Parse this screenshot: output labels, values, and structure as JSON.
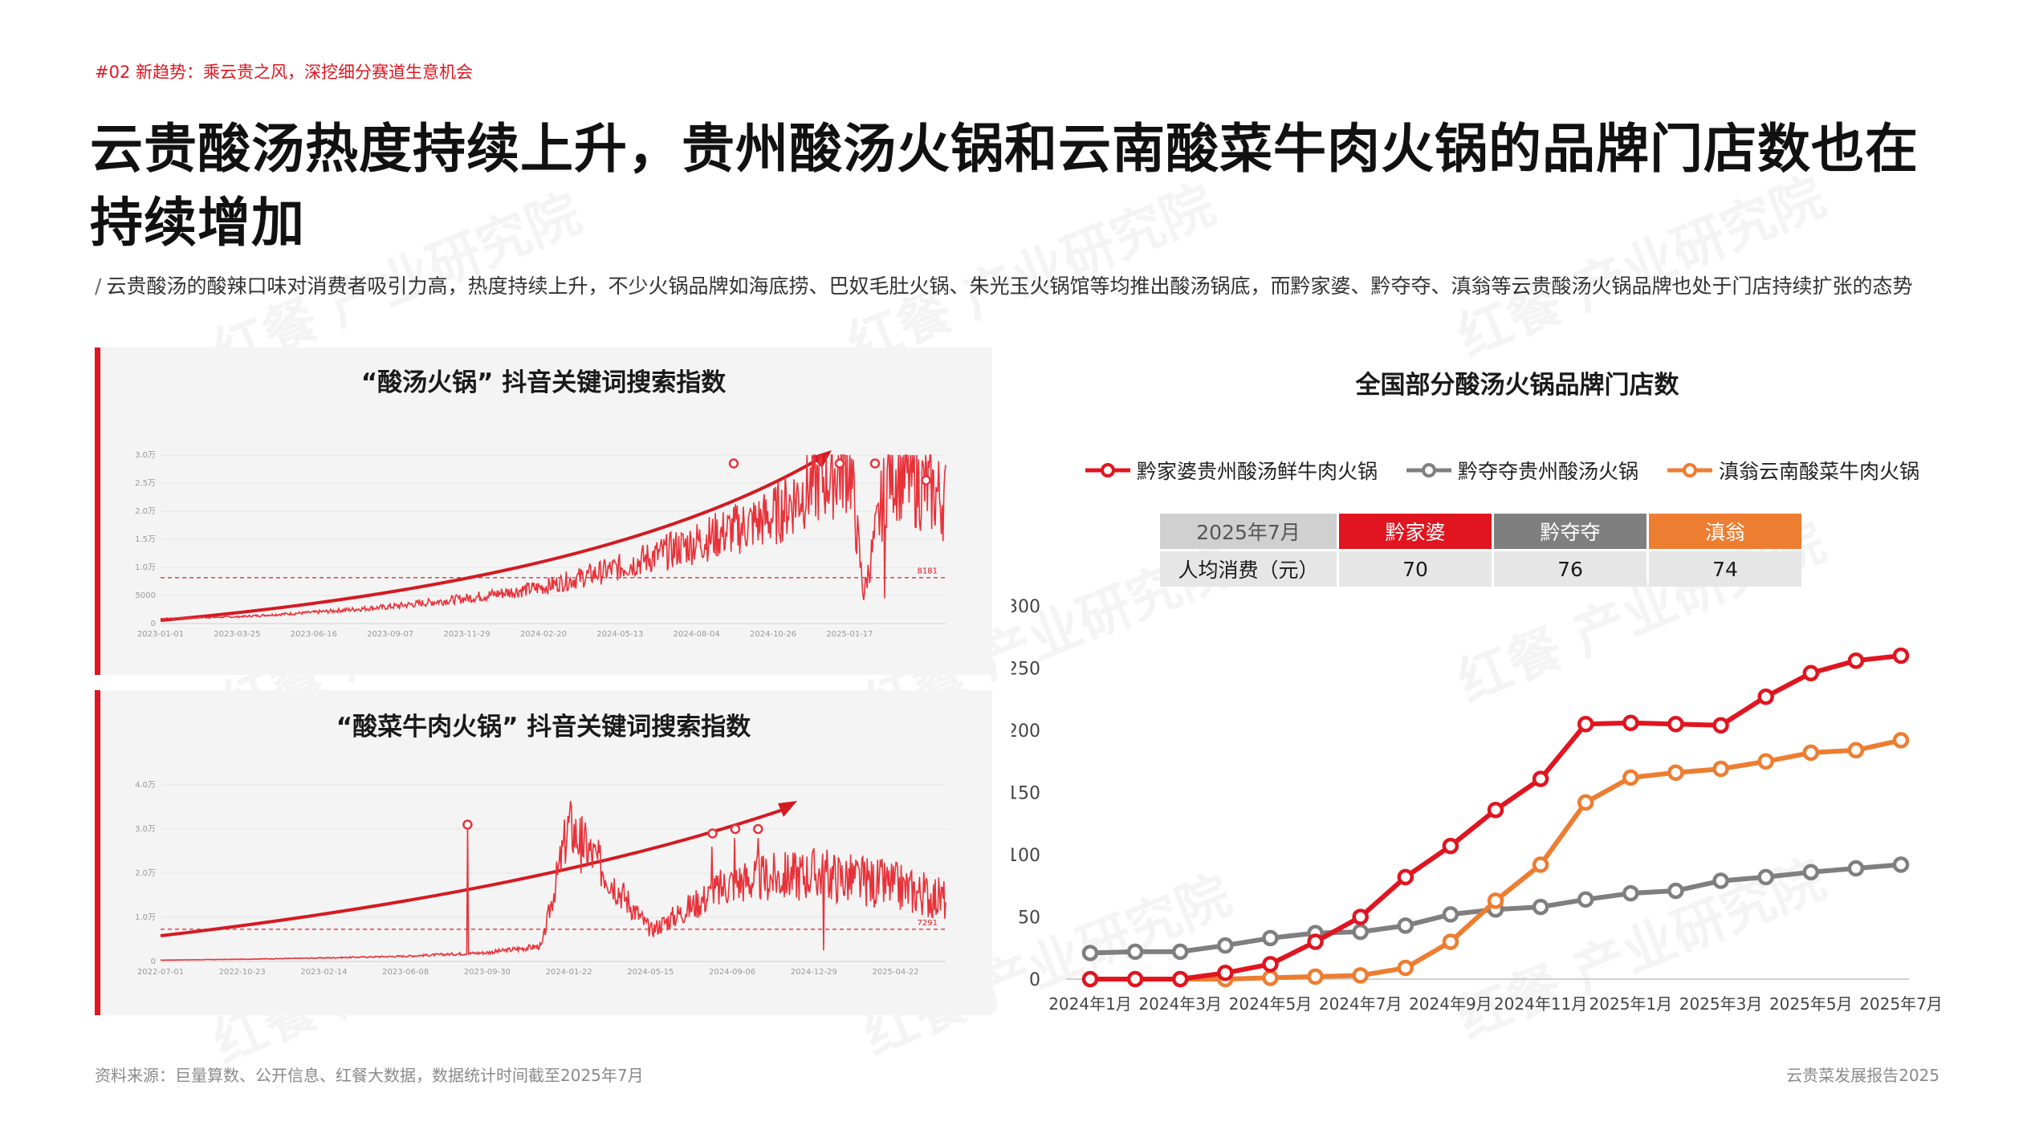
{
  "header": {
    "section_tag": "#02 新趋势：乘云贵之风，深挖细分赛道生意机会",
    "title": "云贵酸汤热度持续上升，贵州酸汤火锅和云南酸菜牛肉火锅的品牌门店数也在持续增加",
    "subtitle": "云贵酸汤的酸辣口味对消费者吸引力高，热度持续上升，不少火锅品牌如海底捞、巴奴毛肚火锅、朱光玉火锅馆等均推出酸汤锅底，而黔家婆、黔夺夺、滇翁等云贵酸汤火锅品牌也处于门店持续扩张的态势"
  },
  "watermark": "红餐 产业研究院",
  "chart_data": [
    {
      "type": "line",
      "title": "“酸汤火锅” 抖音关键词搜索指数",
      "x_ticks": [
        "2023-01-01",
        "2023-03-25",
        "2023-06-16",
        "2023-09-07",
        "2023-11-29",
        "2024-02-20",
        "2024-05-13",
        "2024-08-04",
        "2024-10-26",
        "2025-01-17"
      ],
      "y_ticks": [
        "0",
        "5000",
        "1.0万",
        "1.5万",
        "2.0万",
        "2.5万",
        "3.0万"
      ],
      "ylim": [
        0,
        30000
      ],
      "reference_line": {
        "value": 8181,
        "label": "8181"
      },
      "series": [
        {
          "x": [
            "2023-01-01",
            "2023-03-25",
            "2023-06-16",
            "2023-09-07",
            "2023-11-29",
            "2024-02-20",
            "2024-05-13",
            "2024-08-04",
            "2024-10-26",
            "2024-12-01",
            "2025-01-17",
            "2025-02-01",
            "2025-03-01",
            "2025-05-01"
          ],
          "values": [
            900,
            1200,
            2000,
            3000,
            4500,
            6500,
            10000,
            14500,
            19000,
            24000,
            28500,
            5000,
            28000,
            22000
          ]
        }
      ],
      "trend_arrow": true
    },
    {
      "type": "line",
      "title": "“酸菜牛肉火锅” 抖音关键词搜索指数",
      "x_ticks": [
        "2022-07-01",
        "2022-10-23",
        "2023-02-14",
        "2023-06-08",
        "2023-09-30",
        "2024-01-22",
        "2024-05-15",
        "2024-09-06",
        "2024-12-29",
        "2025-04-22"
      ],
      "y_ticks": [
        "0",
        "1.0万",
        "2.0万",
        "3.0万",
        "4.0万"
      ],
      "ylim": [
        0,
        40000
      ],
      "reference_line": {
        "value": 7291,
        "label": "7291"
      },
      "series": [
        {
          "x": [
            "2022-07-01",
            "2022-10-23",
            "2023-02-14",
            "2023-06-08",
            "2023-09-30",
            "2023-12-15",
            "2024-01-22",
            "2024-05-15",
            "2024-09-06",
            "2024-12-29",
            "2025-04-22",
            "2025-07-01"
          ],
          "values": [
            300,
            500,
            800,
            1200,
            2000,
            3500,
            31000,
            7000,
            18000,
            20000,
            17000,
            14000
          ]
        }
      ],
      "trend_arrow": true
    },
    {
      "type": "line",
      "title": "全国部分酸汤火锅品牌门店数",
      "x": [
        "2024年1月",
        "2024年2月",
        "2024年3月",
        "2024年4月",
        "2024年5月",
        "2024年6月",
        "2024年7月",
        "2024年8月",
        "2024年9月",
        "2024年10月",
        "2024年11月",
        "2024年12月",
        "2025年1月",
        "2025年2月",
        "2025年3月",
        "2025年4月",
        "2025年5月",
        "2025年6月",
        "2025年7月"
      ],
      "x_tick_labels": [
        "2024年1月",
        "2024年3月",
        "2024年5月",
        "2024年7月",
        "2024年9月",
        "2024年11月",
        "2025年1月",
        "2025年3月",
        "2025年5月",
        "2025年7月"
      ],
      "y_ticks": [
        0,
        50,
        100,
        150,
        200,
        250,
        300
      ],
      "ylim": [
        0,
        300
      ],
      "series": [
        {
          "name": "黔家婆贵州酸汤鲜牛肉火锅",
          "color": "#e0151f",
          "values": [
            0,
            0,
            0,
            5,
            12,
            30,
            50,
            82,
            107,
            136,
            161,
            205,
            206,
            205,
            204,
            227,
            246,
            256,
            260
          ]
        },
        {
          "name": "黔夺夺贵州酸汤火锅",
          "color": "#7f7f7f",
          "values": [
            21,
            22,
            22,
            27,
            33,
            37,
            38,
            43,
            52,
            56,
            58,
            64,
            69,
            71,
            79,
            82,
            86,
            89,
            92
          ]
        },
        {
          "name": "滇翁云南酸菜牛肉火锅",
          "color": "#ed7d31",
          "values": [
            null,
            null,
            0,
            0,
            1,
            2,
            3,
            9,
            30,
            63,
            92,
            142,
            162,
            166,
            169,
            175,
            182,
            184,
            192
          ]
        }
      ]
    }
  ],
  "price_table": {
    "header": [
      "2025年7月",
      "黔家婆",
      "黔夺夺",
      "滇翁"
    ],
    "row_label": "人均消费（元）",
    "values": [
      "70",
      "76",
      "74"
    ],
    "colors": {
      "header_label_bg": "#d0d0d0",
      "qianjiapo": "#e0151f",
      "qianduoduo": "#7f7f7f",
      "dianweng": "#ed7d31",
      "row_bg": "#e6e6e6"
    }
  },
  "footer": {
    "source": "资料来源：巨量算数、公开信息、红餐大数据，数据统计时间截至2025年7月",
    "report": "云贵菜发展报告2025"
  }
}
